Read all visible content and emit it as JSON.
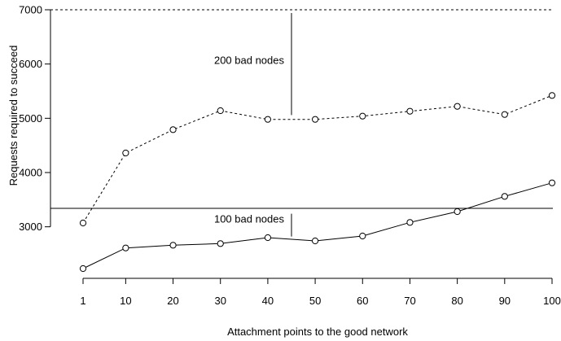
{
  "chart_data": {
    "type": "line",
    "title": "",
    "xlabel": "Attachment points to the good network",
    "ylabel": "Requests required to succeed",
    "x": [
      1,
      10,
      20,
      30,
      40,
      50,
      60,
      70,
      80,
      90,
      100
    ],
    "x_tick_labels": [
      "1",
      "10",
      "20",
      "30",
      "40",
      "50",
      "60",
      "70",
      "80",
      "90",
      "100"
    ],
    "y_ticks": [
      3000,
      4000,
      5000,
      6000,
      7000
    ],
    "y_tick_labels": [
      "3000",
      "4000",
      "5000",
      "6000",
      "7000"
    ],
    "xlim": [
      1,
      100
    ],
    "ylim": [
      2200,
      7000
    ],
    "grid": false,
    "series": [
      {
        "name": "",
        "line_style": "dashed",
        "marker": "open-circle",
        "values": [
          3070,
          4360,
          4790,
          5140,
          4980,
          4980,
          5040,
          5130,
          5220,
          5070,
          5420
        ]
      },
      {
        "name": "",
        "line_style": "solid",
        "marker": "open-circle",
        "values": [
          2230,
          2610,
          2660,
          2690,
          2800,
          2740,
          2830,
          3080,
          3280,
          3560,
          3810
        ]
      }
    ],
    "reference_lines": [
      {
        "style": "dashed",
        "value": 7000
      },
      {
        "style": "solid",
        "value": 3340
      }
    ],
    "annotations": [
      {
        "text": "200 bad nodes",
        "x": 45,
        "line_from": 5060,
        "line_to": 6940
      },
      {
        "text": "100 bad nodes",
        "x": 45,
        "line_from": 2820,
        "line_to": 3240
      }
    ],
    "colors": {
      "line": "#000000",
      "marker_fill": "#ffffff"
    }
  }
}
